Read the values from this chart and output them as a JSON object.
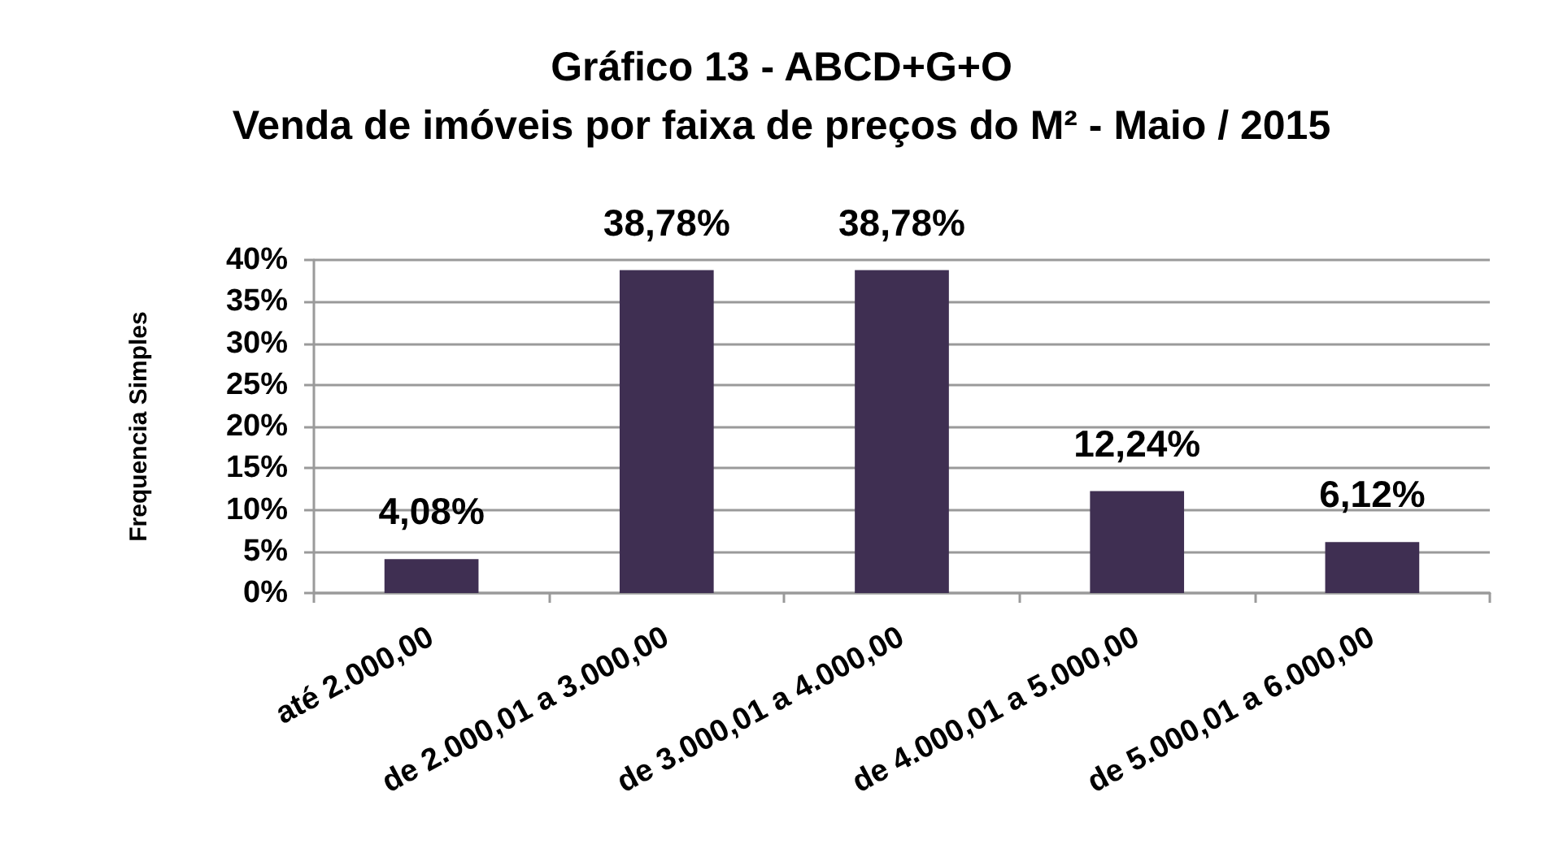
{
  "chart_data": {
    "type": "bar",
    "title": "Gráfico 13 - ABCD+G+O",
    "subtitle": "Venda de imóveis por faixa de preços do M² - Maio / 2015",
    "ylabel": "Frequencia Simples",
    "categories": [
      "até 2.000,00",
      "de 2.000,01 a 3.000,00",
      "de 3.000,01 a 4.000,00",
      "de 4.000,01 a 5.000,00",
      "de 5.000,01 a 6.000,00"
    ],
    "values": [
      4.08,
      38.78,
      38.78,
      12.24,
      6.12
    ],
    "color": "#3f2f52",
    "value_labels": [
      "4,08%",
      "38,78%",
      "38,78%",
      "12,24%",
      "6,12%"
    ],
    "ylim": [
      0,
      40
    ],
    "yticks": [
      {
        "value": 0,
        "label": "0%"
      },
      {
        "value": 5,
        "label": "5%"
      },
      {
        "value": 10,
        "label": "10%"
      },
      {
        "value": 15,
        "label": "15%"
      },
      {
        "value": 20,
        "label": "20%"
      },
      {
        "value": 25,
        "label": "25%"
      },
      {
        "value": 30,
        "label": "30%"
      },
      {
        "value": 35,
        "label": "35%"
      },
      {
        "value": 40,
        "label": "40%"
      }
    ],
    "grid": "y"
  }
}
